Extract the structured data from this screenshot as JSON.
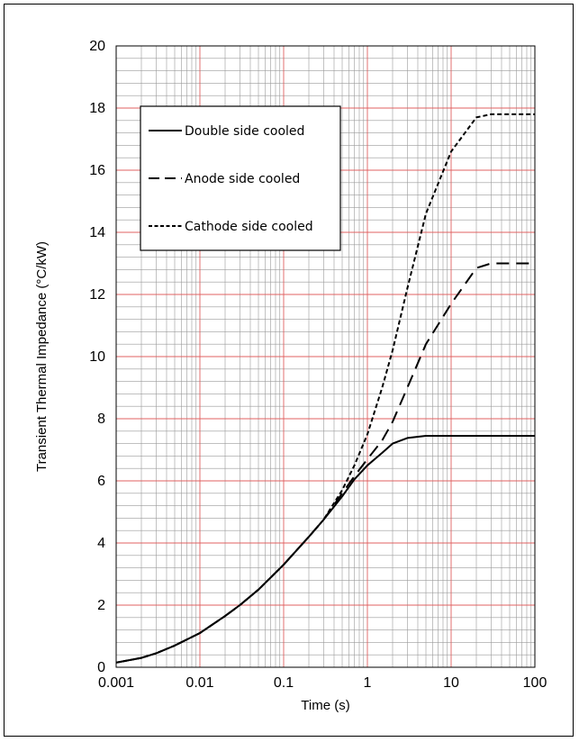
{
  "chart_data": {
    "type": "line",
    "xlabel": "Time (s)",
    "ylabel": "Transient Thermal Impedance (°C/kW)",
    "xscale": "log",
    "xlim": [
      0.001,
      100
    ],
    "ylim": [
      0,
      20
    ],
    "x_ticks": [
      "0.001",
      "0.01",
      "0.1",
      "1",
      "10",
      "100"
    ],
    "y_ticks": [
      "0",
      "2",
      "4",
      "6",
      "8",
      "10",
      "12",
      "14",
      "16",
      "18",
      "20"
    ],
    "grid": true,
    "legend_position": "upper-left",
    "colors": {
      "major_grid": "#e06060",
      "minor_grid": "#9a9a9a",
      "line": "#000000"
    },
    "series": [
      {
        "name": "Double side cooled",
        "style": "solid",
        "x": [
          0.001,
          0.002,
          0.003,
          0.005,
          0.01,
          0.02,
          0.03,
          0.05,
          0.1,
          0.2,
          0.3,
          0.5,
          0.7,
          1,
          1.5,
          2,
          3,
          5,
          10,
          20,
          100
        ],
        "y": [
          0.15,
          0.3,
          0.45,
          0.7,
          1.1,
          1.65,
          2.0,
          2.5,
          3.3,
          4.2,
          4.75,
          5.5,
          6.05,
          6.5,
          6.9,
          7.2,
          7.38,
          7.45,
          7.45,
          7.45,
          7.45
        ]
      },
      {
        "name": "Anode side cooled",
        "style": "dashed",
        "x": [
          0.001,
          0.002,
          0.003,
          0.005,
          0.01,
          0.02,
          0.03,
          0.05,
          0.1,
          0.2,
          0.3,
          0.5,
          0.7,
          1,
          1.5,
          2,
          3,
          5,
          10,
          20,
          30,
          100
        ],
        "y": [
          0.15,
          0.3,
          0.45,
          0.7,
          1.1,
          1.65,
          2.0,
          2.5,
          3.3,
          4.2,
          4.75,
          5.6,
          6.15,
          6.7,
          7.3,
          7.9,
          9.0,
          10.4,
          11.7,
          12.85,
          13.0,
          13.0
        ]
      },
      {
        "name": "Cathode side cooled",
        "style": "dotted",
        "x": [
          0.001,
          0.002,
          0.003,
          0.005,
          0.01,
          0.02,
          0.03,
          0.05,
          0.1,
          0.2,
          0.3,
          0.5,
          0.7,
          1,
          1.5,
          2,
          3,
          5,
          10,
          20,
          30,
          100
        ],
        "y": [
          0.15,
          0.3,
          0.45,
          0.7,
          1.1,
          1.65,
          2.0,
          2.5,
          3.3,
          4.2,
          4.75,
          5.7,
          6.5,
          7.5,
          9.0,
          10.2,
          12.2,
          14.6,
          16.6,
          17.7,
          17.8,
          17.8
        ]
      }
    ]
  }
}
